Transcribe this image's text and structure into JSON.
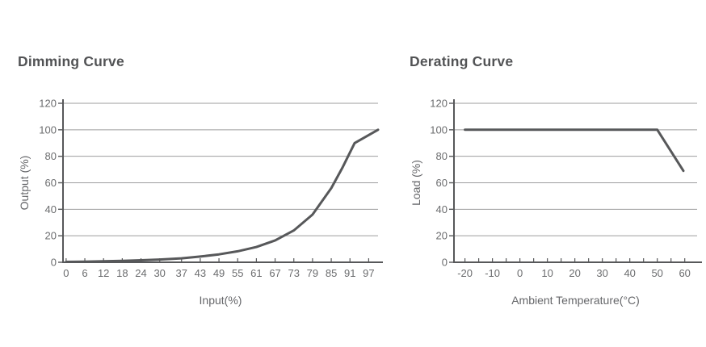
{
  "page": {
    "background": "#ffffff"
  },
  "colors": {
    "title": "#525355",
    "axis": "#57585a",
    "grid": "#9d9d9e",
    "tick_label": "#6b6c6e",
    "line": "#57585a"
  },
  "chart_data": [
    {
      "type": "line",
      "title": "Dimming Curve",
      "xlabel": "Input(%)",
      "ylabel": "Output (%)",
      "xlim": [
        -1,
        100
      ],
      "ylim": [
        0,
        120
      ],
      "x_ticks": [
        0,
        6,
        12,
        18,
        24,
        30,
        37,
        43,
        49,
        55,
        61,
        67,
        73,
        79,
        85,
        91,
        97
      ],
      "y_ticks": [
        0,
        20,
        40,
        60,
        80,
        100,
        120
      ],
      "grid": "horizontal",
      "legend": "none",
      "series": [
        {
          "name": "output",
          "points": [
            [
              0,
              0.3
            ],
            [
              6,
              0.5
            ],
            [
              12,
              0.8
            ],
            [
              18,
              1.1
            ],
            [
              24,
              1.5
            ],
            [
              30,
              2.1
            ],
            [
              37,
              3
            ],
            [
              43,
              4.3
            ],
            [
              49,
              6
            ],
            [
              55,
              8.3
            ],
            [
              61,
              11.5
            ],
            [
              67,
              16.5
            ],
            [
              73,
              24
            ],
            [
              79,
              36
            ],
            [
              85,
              56
            ],
            [
              88.5,
              71
            ],
            [
              92.5,
              90
            ],
            [
              100,
              100
            ]
          ]
        }
      ]
    },
    {
      "type": "line",
      "title": "Derating Curve",
      "xlabel": "Ambient Temperature(°C)",
      "ylabel": "Load (%)",
      "xlim": [
        -24,
        64.5
      ],
      "ylim": [
        0,
        120
      ],
      "x_ticks": [
        -20,
        -10,
        0,
        10,
        20,
        30,
        40,
        50,
        60
      ],
      "x_minor_ticks": [
        -20,
        -15,
        -10,
        -5,
        0,
        5,
        10,
        15,
        20,
        25,
        30,
        35,
        40,
        45,
        50,
        55,
        60
      ],
      "y_ticks": [
        0,
        20,
        40,
        60,
        80,
        100,
        120
      ],
      "grid": "horizontal",
      "legend": "none",
      "series": [
        {
          "name": "load",
          "points": [
            [
              -20,
              100
            ],
            [
              50,
              100
            ],
            [
              59.5,
              69
            ]
          ]
        }
      ]
    }
  ]
}
